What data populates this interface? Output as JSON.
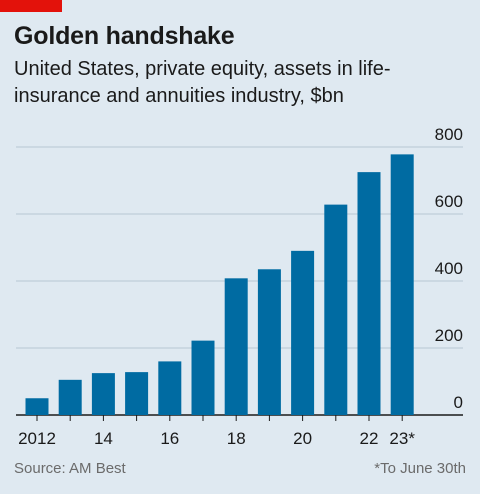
{
  "brand": {
    "accent": "#e3120b"
  },
  "chart_data": {
    "type": "bar",
    "title": "Golden handshake",
    "subtitle": "United States, private equity, assets in life-insurance and annuities industry, $bn",
    "categories": [
      "2012",
      "2013",
      "2014",
      "2015",
      "2016",
      "2017",
      "2018",
      "2019",
      "2020",
      "2021",
      "2022",
      "2023*"
    ],
    "x_tick_labels": [
      "2012",
      "",
      "14",
      "",
      "16",
      "",
      "18",
      "",
      "20",
      "",
      "22",
      "23*"
    ],
    "values": [
      50,
      105,
      125,
      128,
      160,
      222,
      408,
      435,
      490,
      628,
      725,
      778
    ],
    "ylim": [
      0,
      800
    ],
    "yticks": [
      0,
      200,
      400,
      600,
      800
    ],
    "grid": true,
    "y_axis_side": "right",
    "bar_color": "#006ba2",
    "source": "Source: AM Best",
    "footnote": "*To June 30th"
  }
}
